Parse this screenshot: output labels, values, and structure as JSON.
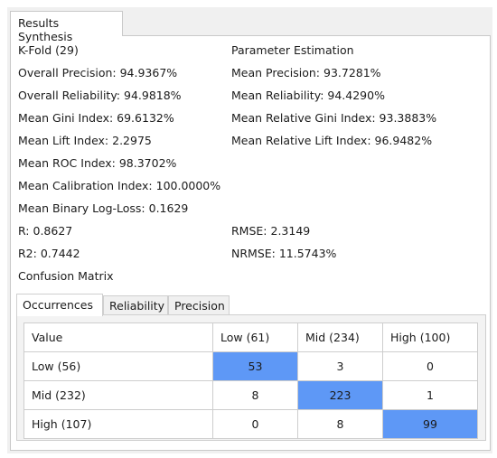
{
  "tab_title": "Results Synthesis",
  "left": {
    "kfold": "K-Fold (29)",
    "overall_precision": "Overall Precision: 94.9367%",
    "overall_reliability": "Overall Reliability: 94.9818%",
    "mean_gini": "Mean Gini Index: 69.6132%",
    "mean_lift": "Mean Lift Index: 2.2975",
    "mean_roc": "Mean ROC Index: 98.3702%",
    "mean_calibration": "Mean Calibration Index: 100.0000%",
    "mean_logloss": "Mean Binary Log-Loss: 0.1629",
    "r": "R: 0.8627",
    "r2": "R2: 0.7442",
    "confusion_matrix": "Confusion Matrix"
  },
  "right": {
    "parameter_estimation": "Parameter Estimation",
    "mean_precision": "Mean Precision: 93.7281%",
    "mean_reliability": "Mean Reliability: 94.4290%",
    "mean_relative_gini": "Mean Relative Gini Index: 93.3883%",
    "mean_relative_lift": "Mean Relative Lift Index: 96.9482%",
    "rmse": "RMSE: 2.3149",
    "nrmse": "NRMSE: 11.5743%"
  },
  "subtabs": [
    "Occurrences",
    "Reliability",
    "Precision"
  ],
  "matrix": {
    "headers": [
      "Value",
      "Low (61)",
      "Mid (234)",
      "High (100)"
    ],
    "rows": [
      {
        "label": "Low (56)",
        "cells": [
          "53",
          "3",
          "0"
        ]
      },
      {
        "label": "Mid (232)",
        "cells": [
          "8",
          "223",
          "1"
        ]
      },
      {
        "label": "High (107)",
        "cells": [
          "0",
          "8",
          "99"
        ]
      }
    ],
    "highlight_color": "#5e98f6"
  }
}
